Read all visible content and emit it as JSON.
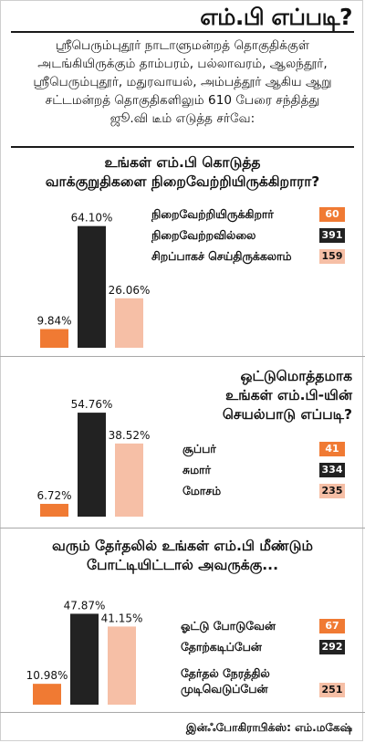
{
  "title": "எம்.பி எப்படி?",
  "intro": [
    "ஸ்ரீபெரும்புதூர் நாடாளுமன்றத் தொகுதிக்குள்",
    "அடங்கியிருக்கும் தாம்பரம், பல்லாவரம், ஆலந்தூர்,",
    "ஸ்ரீபெரும்புதூர், மதுரவாயல், அம்பத்தூர் ஆகிய ஆறு",
    "சட்டமன்றத் தொகுதிகளிலும் 610 பேரை சந்தித்து",
    "ஜூ.வி டீம் எடுத்த சர்வே:"
  ],
  "credit": "இன்ஃபோகிராபிக்ஸ்: எம்.மகேஷ்",
  "colors": {
    "orange": "#f07a33",
    "black": "#222222",
    "pink": "#f6bfa6"
  },
  "chart_data": [
    {
      "type": "bar",
      "title": "உங்கள் எம்.பி கொடுத்த வாக்குறுதிகளை நிறைவேற்றியிருக்கிறாரா?",
      "title_lines": [
        "உங்கள் எம்.பி கொடுத்த",
        "வாக்குறுதிகளை நிறைவேற்றியிருக்கிறாரா?"
      ],
      "categories": [
        "நிறைவேற்றியிருக்கிறார்",
        "நிறைவேற்றவில்லை",
        "சிறப்பாகச் செய்திருக்கலாம்"
      ],
      "values": [
        9.84,
        64.1,
        26.06
      ],
      "value_labels": [
        "9.84%",
        "64.10%",
        "26.06%"
      ],
      "counts": [
        "60",
        "391",
        "159"
      ],
      "colors": [
        "orange",
        "black",
        "pink"
      ],
      "legend_position": "top-right"
    },
    {
      "type": "bar",
      "title": "ஒட்டுமொத்தமாக உங்கள் எம்.பி-யின் செயல்பாடு எப்படி?",
      "title_lines": [
        "ஒட்டுமொத்தமாக",
        "உங்கள் எம்.பி-யின்",
        "செயல்பாடு எப்படி?"
      ],
      "categories": [
        "சூப்பர்",
        "சுமார்",
        "மோசம்"
      ],
      "values": [
        6.72,
        54.76,
        38.52
      ],
      "value_labels": [
        "6.72%",
        "54.76%",
        "38.52%"
      ],
      "counts": [
        "41",
        "334",
        "235"
      ],
      "colors": [
        "orange",
        "black",
        "pink"
      ],
      "legend_position": "right"
    },
    {
      "type": "bar",
      "title": "வரும் தேர்தலில் உங்கள் எம்.பி மீண்டும் போட்டியிட்டால் அவருக்கு...",
      "title_lines": [
        "வரும் தேர்தலில் உங்கள் எம்.பி மீண்டும்",
        "போட்டியிட்டால் அவருக்கு..."
      ],
      "categories": [
        "ஓட்டு போடுவேன்",
        "தோற்கடிப்பேன்",
        "தேர்தல் நேரத்தில் முடிவெடுப்பேன்"
      ],
      "category_lines": [
        [
          "ஓட்டு போடுவேன்"
        ],
        [
          "தோற்கடிப்பேன்"
        ],
        [
          "தேர்தல் நேரத்தில்",
          "முடிவெடுப்பேன்"
        ]
      ],
      "values": [
        10.98,
        47.87,
        41.15
      ],
      "value_labels": [
        "10.98%",
        "47.87%",
        "41.15%"
      ],
      "counts": [
        "67",
        "292",
        "251"
      ],
      "colors": [
        "orange",
        "black",
        "pink"
      ],
      "legend_position": "right"
    }
  ]
}
